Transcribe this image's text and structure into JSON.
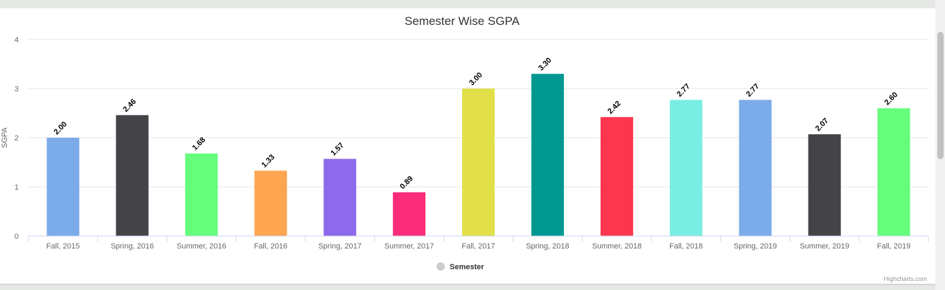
{
  "chart_data": {
    "type": "bar",
    "title": "Semester Wise SGPA",
    "ylabel": "SGPA",
    "xlabel": "",
    "ylim": [
      0,
      4
    ],
    "yticks": [
      0,
      1,
      2,
      3,
      4
    ],
    "grid": true,
    "legend_position": "bottom-center",
    "categories": [
      "Fall, 2015",
      "Spring, 2016",
      "Summer, 2016",
      "Fall, 2016",
      "Spring, 2017",
      "Summer, 2017",
      "Fall, 2017",
      "Spring, 2018",
      "Summer, 2018",
      "Fall, 2018",
      "Spring, 2019",
      "Summer, 2019",
      "Fall, 2019"
    ],
    "series": [
      {
        "name": "Semester",
        "values": [
          2.0,
          2.46,
          1.68,
          1.33,
          1.57,
          0.89,
          3.0,
          3.3,
          2.42,
          2.77,
          2.77,
          2.07,
          2.6
        ],
        "labels": [
          "2.00",
          "2.46",
          "1.68",
          "1.33",
          "1.57",
          "0.89",
          "3.00",
          "3.30",
          "2.42",
          "2.77",
          "2.77",
          "2.07",
          "2.60"
        ],
        "colors": [
          "#7cabea",
          "#434348",
          "#66fc7c",
          "#fda550",
          "#8d6aec",
          "#fb2c79",
          "#e2e048",
          "#019892",
          "#fd354d",
          "#7aeee2",
          "#7cabea",
          "#434348",
          "#66fc7c"
        ]
      }
    ],
    "legend_swatch_color": "#cccccc"
  },
  "credit": "Highcharts.com"
}
